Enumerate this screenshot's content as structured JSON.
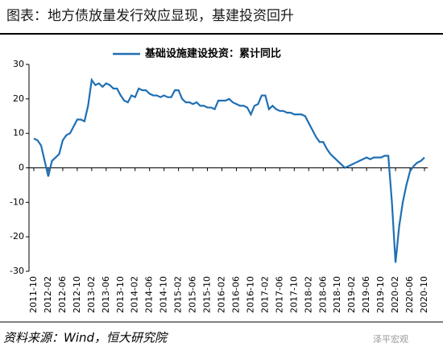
{
  "chart_data": {
    "type": "line",
    "title": "图表：地方债放量发行效应显现，基建投资回升",
    "source": "资料来源：Wind，恒大研究院",
    "watermark": "泽平宏观",
    "categories": [
      "2011-10",
      null,
      null,
      null,
      "2012-02",
      null,
      null,
      null,
      "2012-06",
      null,
      null,
      null,
      "2012-10",
      null,
      null,
      null,
      "2013-02",
      null,
      null,
      null,
      "2013-06",
      null,
      null,
      null,
      "2013-10",
      null,
      null,
      null,
      "2014-02",
      null,
      null,
      null,
      "2014-06",
      null,
      null,
      null,
      "2014-10",
      null,
      null,
      null,
      "2015-02",
      null,
      null,
      null,
      "2015-06",
      null,
      null,
      null,
      "2015-10",
      null,
      null,
      null,
      "2016-02",
      null,
      null,
      null,
      "2016-06",
      null,
      null,
      null,
      "2016-10",
      null,
      null,
      null,
      "2017-02",
      null,
      null,
      null,
      "2017-06",
      null,
      null,
      null,
      "2017-10",
      null,
      null,
      null,
      "2018-02",
      null,
      null,
      null,
      "2018-06",
      null,
      null,
      null,
      "2018-10",
      null,
      null,
      null,
      "2019-02",
      null,
      null,
      null,
      "2019-06",
      null,
      null,
      null,
      "2019-10",
      null,
      null,
      null,
      "2020-02",
      null,
      null,
      null,
      "2020-06",
      null,
      null,
      null,
      "2020-10"
    ],
    "series": [
      {
        "name": "基础设施建设投资：累计同比",
        "color": "#1f6fb4",
        "values": [
          8.5,
          8,
          6.5,
          2,
          -2.5,
          2,
          3,
          4,
          8,
          9.5,
          10,
          12,
          14,
          14,
          13.5,
          18,
          25.5,
          24,
          24.5,
          23.5,
          24.5,
          24,
          23,
          23,
          21,
          19.5,
          19,
          21,
          20.5,
          23,
          22.5,
          22.5,
          21.5,
          21,
          21,
          20.5,
          21,
          20.5,
          20.5,
          22.5,
          22.5,
          20,
          19,
          19,
          18.5,
          19,
          18,
          18,
          17.5,
          17.5,
          17,
          19.5,
          19.5,
          19.5,
          20,
          19,
          18.5,
          18,
          18,
          17.5,
          15.5,
          18,
          18.5,
          21,
          21,
          17,
          18,
          17,
          16.5,
          16.5,
          16,
          16,
          15.5,
          15.5,
          15.5,
          15,
          13,
          11,
          9,
          7.5,
          7.5,
          5.5,
          4,
          3,
          2,
          1,
          0,
          0.5,
          1,
          1.5,
          2,
          2.5,
          3,
          2.5,
          3,
          3,
          3,
          3.5,
          3.5,
          -10,
          -27.5,
          -17,
          -10,
          -5,
          -1,
          0.5,
          1.5,
          2,
          3
        ]
      }
    ],
    "ylim": [
      -30,
      30
    ],
    "yticks": [
      -30,
      -20,
      -10,
      0,
      10,
      20,
      30
    ],
    "grid": false,
    "legend": "top"
  }
}
